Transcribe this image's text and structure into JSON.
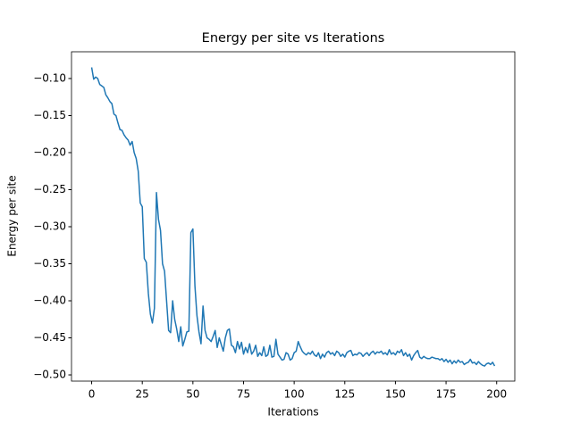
{
  "chart_data": {
    "type": "line",
    "title": "Energy per site vs Iterations",
    "x_label": "Iterations",
    "y_label": "Energy per site",
    "color": "#1f77b4",
    "x": [
      0,
      1,
      2,
      3,
      4,
      5,
      6,
      7,
      8,
      9,
      10,
      11,
      12,
      13,
      14,
      15,
      16,
      17,
      18,
      19,
      20,
      21,
      22,
      23,
      24,
      25,
      26,
      27,
      28,
      29,
      30,
      31,
      32,
      33,
      34,
      35,
      36,
      37,
      38,
      39,
      40,
      41,
      42,
      43,
      44,
      45,
      46,
      47,
      48,
      49,
      50,
      51,
      52,
      53,
      54,
      55,
      56,
      57,
      58,
      59,
      60,
      61,
      62,
      63,
      64,
      65,
      66,
      67,
      68,
      69,
      70,
      71,
      72,
      73,
      74,
      75,
      76,
      77,
      78,
      79,
      80,
      81,
      82,
      83,
      84,
      85,
      86,
      87,
      88,
      89,
      90,
      91,
      92,
      93,
      94,
      95,
      96,
      97,
      98,
      99,
      100,
      101,
      102,
      103,
      104,
      105,
      106,
      107,
      108,
      109,
      110,
      111,
      112,
      113,
      114,
      115,
      116,
      117,
      118,
      119,
      120,
      121,
      122,
      123,
      124,
      125,
      126,
      127,
      128,
      129,
      130,
      131,
      132,
      133,
      134,
      135,
      136,
      137,
      138,
      139,
      140,
      141,
      142,
      143,
      144,
      145,
      146,
      147,
      148,
      149,
      150,
      151,
      152,
      153,
      154,
      155,
      156,
      157,
      158,
      159,
      160,
      161,
      162,
      163,
      164,
      165,
      166,
      167,
      168,
      169,
      170,
      171,
      172,
      173,
      174,
      175,
      176,
      177,
      178,
      179,
      180,
      181,
      182,
      183,
      184,
      185,
      186,
      187,
      188,
      189,
      190,
      191,
      192,
      193,
      194,
      195,
      196,
      197,
      198,
      199
    ],
    "values": [
      -0.085,
      -0.101,
      -0.098,
      -0.1,
      -0.108,
      -0.11,
      -0.112,
      -0.122,
      -0.126,
      -0.131,
      -0.134,
      -0.148,
      -0.15,
      -0.16,
      -0.169,
      -0.17,
      -0.176,
      -0.18,
      -0.183,
      -0.19,
      -0.185,
      -0.2,
      -0.208,
      -0.225,
      -0.268,
      -0.273,
      -0.343,
      -0.348,
      -0.39,
      -0.418,
      -0.43,
      -0.41,
      -0.254,
      -0.29,
      -0.305,
      -0.35,
      -0.36,
      -0.4,
      -0.44,
      -0.443,
      -0.4,
      -0.425,
      -0.438,
      -0.455,
      -0.435,
      -0.461,
      -0.452,
      -0.442,
      -0.441,
      -0.308,
      -0.303,
      -0.38,
      -0.42,
      -0.442,
      -0.458,
      -0.407,
      -0.44,
      -0.45,
      -0.452,
      -0.455,
      -0.448,
      -0.44,
      -0.463,
      -0.45,
      -0.459,
      -0.468,
      -0.45,
      -0.44,
      -0.438,
      -0.46,
      -0.462,
      -0.47,
      -0.455,
      -0.465,
      -0.456,
      -0.472,
      -0.463,
      -0.47,
      -0.458,
      -0.472,
      -0.468,
      -0.46,
      -0.475,
      -0.47,
      -0.474,
      -0.462,
      -0.475,
      -0.473,
      -0.46,
      -0.476,
      -0.475,
      -0.452,
      -0.472,
      -0.476,
      -0.48,
      -0.479,
      -0.47,
      -0.472,
      -0.48,
      -0.478,
      -0.47,
      -0.468,
      -0.455,
      -0.462,
      -0.468,
      -0.471,
      -0.473,
      -0.47,
      -0.472,
      -0.468,
      -0.473,
      -0.475,
      -0.47,
      -0.478,
      -0.472,
      -0.476,
      -0.47,
      -0.468,
      -0.472,
      -0.47,
      -0.474,
      -0.468,
      -0.47,
      -0.475,
      -0.472,
      -0.476,
      -0.47,
      -0.468,
      -0.467,
      -0.474,
      -0.472,
      -0.473,
      -0.47,
      -0.471,
      -0.475,
      -0.472,
      -0.47,
      -0.474,
      -0.47,
      -0.468,
      -0.472,
      -0.469,
      -0.47,
      -0.468,
      -0.472,
      -0.47,
      -0.473,
      -0.466,
      -0.472,
      -0.47,
      -0.473,
      -0.468,
      -0.47,
      -0.466,
      -0.474,
      -0.47,
      -0.475,
      -0.472,
      -0.48,
      -0.474,
      -0.47,
      -0.467,
      -0.476,
      -0.478,
      -0.475,
      -0.477,
      -0.478,
      -0.478,
      -0.476,
      -0.477,
      -0.478,
      -0.478,
      -0.48,
      -0.478,
      -0.482,
      -0.479,
      -0.483,
      -0.48,
      -0.485,
      -0.481,
      -0.484,
      -0.48,
      -0.483,
      -0.482,
      -0.486,
      -0.484,
      -0.483,
      -0.479,
      -0.484,
      -0.483,
      -0.486,
      -0.482,
      -0.485,
      -0.487,
      -0.488,
      -0.485,
      -0.484,
      -0.486,
      -0.483,
      -0.488
    ],
    "xlim": [
      -9.95,
      208.95
    ],
    "xticks": [
      0,
      25,
      50,
      75,
      100,
      125,
      150,
      175,
      200
    ],
    "ylim": [
      -0.5084,
      -0.0639
    ],
    "yticks": [
      {
        "value": -0.1,
        "label": "−0.10"
      },
      {
        "value": -0.15,
        "label": "−0.15"
      },
      {
        "value": -0.2,
        "label": "−0.20"
      },
      {
        "value": -0.25,
        "label": "−0.25"
      },
      {
        "value": -0.3,
        "label": "−0.30"
      },
      {
        "value": -0.35,
        "label": "−0.35"
      },
      {
        "value": -0.4,
        "label": "−0.40"
      },
      {
        "value": -0.45,
        "label": "−0.45"
      },
      {
        "value": -0.5,
        "label": "−0.50"
      }
    ]
  }
}
